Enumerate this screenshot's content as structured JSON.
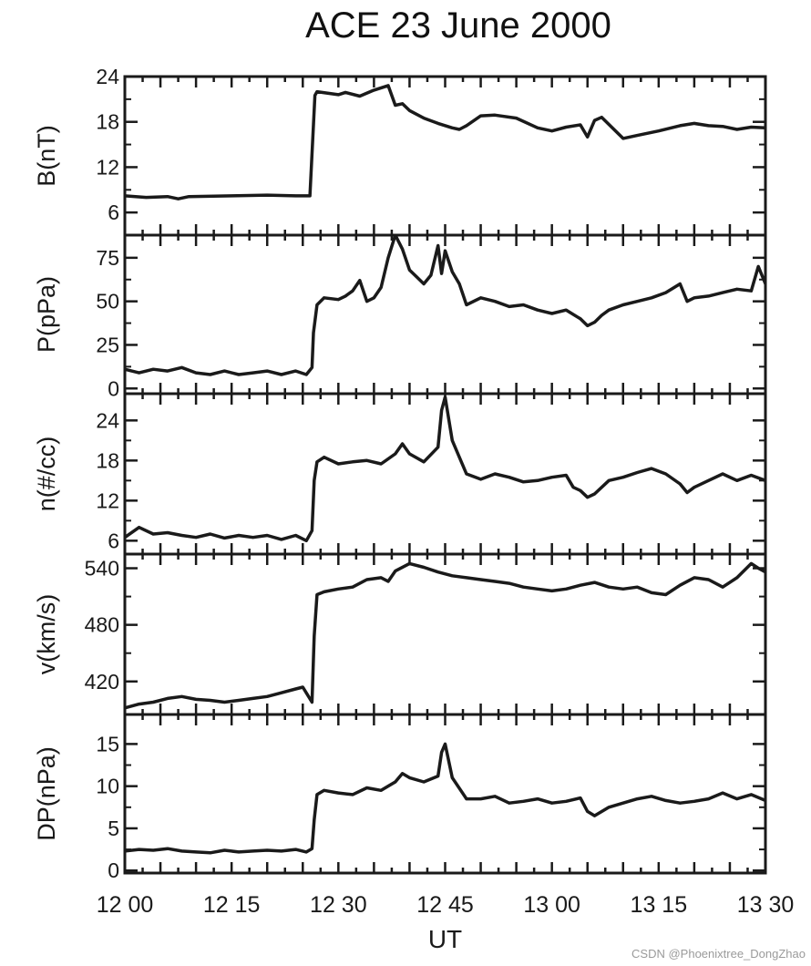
{
  "title": "ACE 23 June 2000",
  "watermark": "CSDN @Phoenixtree_DongZhao",
  "colors": {
    "line": "#1a1a1a",
    "axis": "#1a1a1a",
    "text": "#1a1a1a"
  },
  "chart_data": {
    "type": "line",
    "title": "ACE 23 June 2000",
    "xlabel": "UT",
    "x_tick_labels": [
      "12 00",
      "12 15",
      "12 30",
      "12 45",
      "13 00",
      "13 15",
      "13 30"
    ],
    "xlim": [
      0,
      90
    ],
    "x_unit": "minutes after 12:00 UT",
    "grid": false,
    "panels": [
      {
        "ylabel": "B(nT)",
        "ylim": [
          3,
          24
        ],
        "yticks": [
          6,
          12,
          18,
          24
        ],
        "ytick_labels": [
          "6",
          "12",
          "18",
          "24"
        ],
        "x": [
          0,
          3,
          6,
          7.5,
          9,
          15,
          20,
          24,
          26,
          26.7,
          27,
          30,
          31,
          33,
          35,
          36,
          37,
          38,
          39,
          40,
          42,
          44,
          46,
          47,
          48,
          50,
          52,
          55,
          58,
          60,
          62,
          64,
          65,
          66,
          67,
          70,
          72,
          75,
          78,
          80,
          82,
          84,
          86,
          88,
          90
        ],
        "y": [
          8.2,
          8.0,
          8.1,
          7.8,
          8.1,
          8.2,
          8.3,
          8.2,
          8.2,
          21.5,
          22.0,
          21.6,
          21.9,
          21.4,
          22.2,
          22.5,
          22.8,
          20.2,
          20.4,
          19.5,
          18.5,
          17.8,
          17.2,
          17.0,
          17.5,
          18.8,
          18.9,
          18.5,
          17.2,
          16.8,
          17.3,
          17.6,
          16.0,
          18.2,
          18.6,
          15.8,
          16.2,
          16.8,
          17.5,
          17.8,
          17.5,
          17.4,
          17.0,
          17.3,
          17.2
        ]
      },
      {
        "ylabel": "P(pPa)",
        "ylim": [
          -3,
          88
        ],
        "yticks": [
          0,
          25,
          50,
          75
        ],
        "ytick_labels": [
          "0",
          "25",
          "50",
          "75"
        ],
        "x": [
          0,
          2,
          4,
          6,
          8,
          10,
          12,
          14,
          16,
          18,
          20,
          22,
          24,
          25.5,
          26.3,
          26.5,
          27,
          28,
          30,
          31,
          32,
          33,
          34,
          35,
          36,
          37,
          38,
          39,
          40,
          41,
          42,
          43,
          44,
          44.5,
          45,
          46,
          47,
          48,
          50,
          52,
          54,
          56,
          58,
          60,
          62,
          64,
          65,
          66,
          67,
          68,
          70,
          72,
          74,
          76,
          78,
          79,
          80,
          82,
          84,
          86,
          88,
          89,
          90
        ],
        "y": [
          11,
          9,
          11,
          10,
          12,
          9,
          8,
          10,
          8,
          9,
          10,
          8,
          10,
          8,
          12,
          32,
          48,
          52,
          51,
          53,
          56,
          62,
          50,
          52,
          58,
          75,
          88,
          80,
          68,
          64,
          60,
          65,
          82,
          66,
          79,
          67,
          60,
          48,
          52,
          50,
          47,
          48,
          45,
          43,
          45,
          40,
          36,
          38,
          42,
          45,
          48,
          50,
          52,
          55,
          60,
          50,
          52,
          53,
          55,
          57,
          56,
          70,
          60
        ]
      },
      {
        "ylabel": "n(#/cc)",
        "ylim": [
          4,
          28
        ],
        "yticks": [
          6,
          12,
          18,
          24
        ],
        "ytick_labels": [
          "6",
          "12",
          "18",
          "24"
        ],
        "x": [
          0,
          2,
          4,
          6,
          8,
          10,
          12,
          14,
          16,
          18,
          20,
          22,
          24,
          25.5,
          26.3,
          26.6,
          27,
          28,
          30,
          32,
          34,
          36,
          38,
          39,
          40,
          42,
          44,
          44.5,
          45,
          46,
          48,
          50,
          52,
          54,
          56,
          58,
          60,
          62,
          63,
          64,
          65,
          66,
          68,
          70,
          72,
          74,
          76,
          78,
          79,
          80,
          82,
          84,
          86,
          88,
          90
        ],
        "y": [
          6.5,
          8.0,
          7.0,
          7.2,
          6.8,
          6.5,
          7.0,
          6.4,
          6.8,
          6.5,
          6.8,
          6.2,
          6.8,
          6.0,
          7.5,
          15.0,
          17.8,
          18.5,
          17.5,
          17.8,
          18.0,
          17.5,
          19.0,
          20.5,
          19.0,
          17.8,
          20.0,
          25.5,
          27.5,
          21.0,
          16.0,
          15.2,
          16.0,
          15.5,
          14.8,
          15.0,
          15.5,
          15.8,
          14.0,
          13.5,
          12.5,
          13.0,
          15.0,
          15.5,
          16.2,
          16.8,
          16.0,
          14.5,
          13.2,
          14.0,
          15.0,
          16.0,
          15.0,
          15.8,
          15.0
        ]
      },
      {
        "ylabel": "v(km/s)",
        "ylim": [
          385,
          555
        ],
        "yticks": [
          420,
          480,
          540
        ],
        "ytick_labels": [
          "420",
          "480",
          "540"
        ],
        "x": [
          0,
          2,
          4,
          6,
          8,
          10,
          12,
          14,
          16,
          18,
          20,
          22,
          24,
          25,
          26.3,
          26.6,
          27,
          28,
          30,
          32,
          34,
          36,
          37,
          38,
          40,
          42,
          44,
          46,
          48,
          50,
          52,
          54,
          56,
          58,
          60,
          62,
          64,
          66,
          68,
          70,
          72,
          74,
          76,
          78,
          80,
          82,
          84,
          86,
          88,
          89,
          90
        ],
        "y": [
          392,
          396,
          398,
          402,
          404,
          401,
          400,
          398,
          400,
          402,
          404,
          408,
          412,
          414,
          398,
          468,
          512,
          515,
          518,
          520,
          528,
          530,
          526,
          537,
          545,
          541,
          536,
          532,
          530,
          528,
          526,
          524,
          520,
          518,
          516,
          518,
          522,
          525,
          520,
          518,
          520,
          514,
          512,
          522,
          530,
          528,
          520,
          530,
          545,
          540,
          536
        ]
      },
      {
        "ylabel": "DP(nPa)",
        "ylim": [
          -0.3,
          18.5
        ],
        "yticks": [
          0,
          5,
          10,
          15
        ],
        "ytick_labels": [
          "0",
          "5",
          "10",
          "15"
        ],
        "x": [
          0,
          2,
          4,
          6,
          8,
          10,
          12,
          14,
          16,
          18,
          20,
          22,
          24,
          25.5,
          26.3,
          26.6,
          27,
          28,
          30,
          32,
          34,
          36,
          38,
          39,
          40,
          42,
          44,
          44.5,
          45,
          46,
          48,
          50,
          52,
          54,
          56,
          58,
          60,
          62,
          64,
          65,
          66,
          68,
          70,
          72,
          74,
          76,
          78,
          80,
          82,
          84,
          86,
          88,
          90
        ],
        "y": [
          2.3,
          2.5,
          2.4,
          2.6,
          2.3,
          2.2,
          2.1,
          2.4,
          2.2,
          2.3,
          2.4,
          2.3,
          2.5,
          2.2,
          2.6,
          6.0,
          9.0,
          9.5,
          9.2,
          9.0,
          9.8,
          9.5,
          10.5,
          11.5,
          11.0,
          10.5,
          11.2,
          14.0,
          15.0,
          11.0,
          8.5,
          8.5,
          8.8,
          8.0,
          8.2,
          8.5,
          8.0,
          8.2,
          8.6,
          7.0,
          6.5,
          7.5,
          8.0,
          8.5,
          8.8,
          8.3,
          8.0,
          8.2,
          8.5,
          9.2,
          8.5,
          9.0,
          8.3
        ]
      }
    ]
  }
}
